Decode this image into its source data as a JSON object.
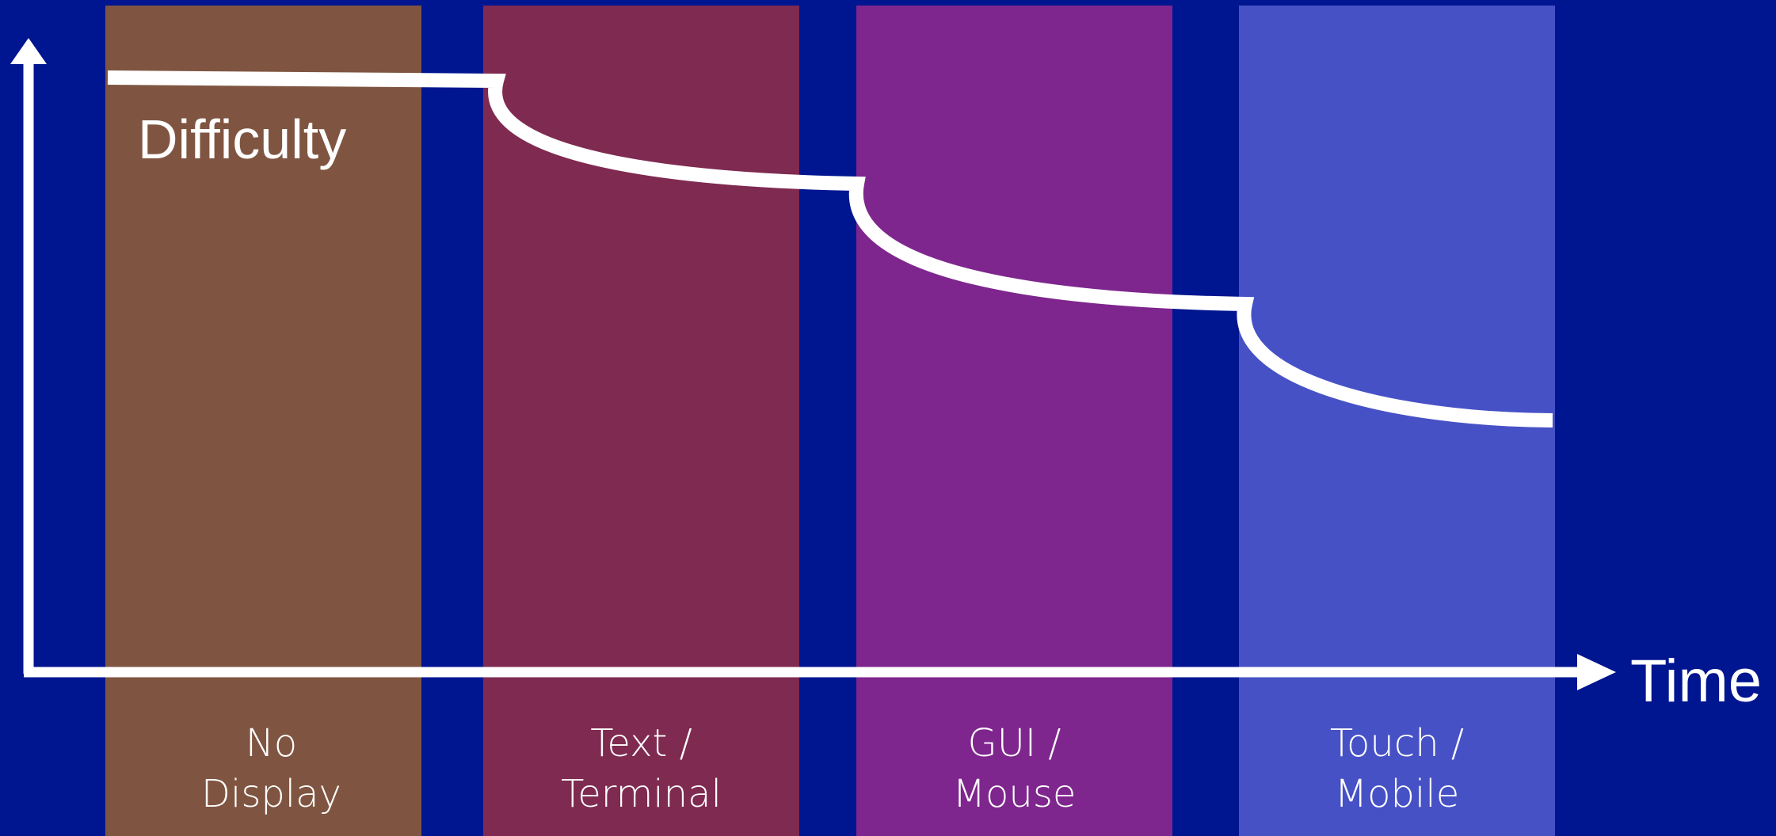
{
  "axes": {
    "y_label": "Difficulty",
    "x_label": "Time"
  },
  "eras": [
    {
      "line1": "No",
      "line2": "Display",
      "color": "#7f5541"
    },
    {
      "line1": "Text /",
      "line2": "Terminal",
      "color": "#7f2a51"
    },
    {
      "line1": "GUI /",
      "line2": "Mouse",
      "color": "#7e268d"
    },
    {
      "line1": "Touch /",
      "line2": "Mobile",
      "color": "#4751c6"
    }
  ],
  "colors": {
    "background": "#001590",
    "lines": "#ffffff"
  }
}
